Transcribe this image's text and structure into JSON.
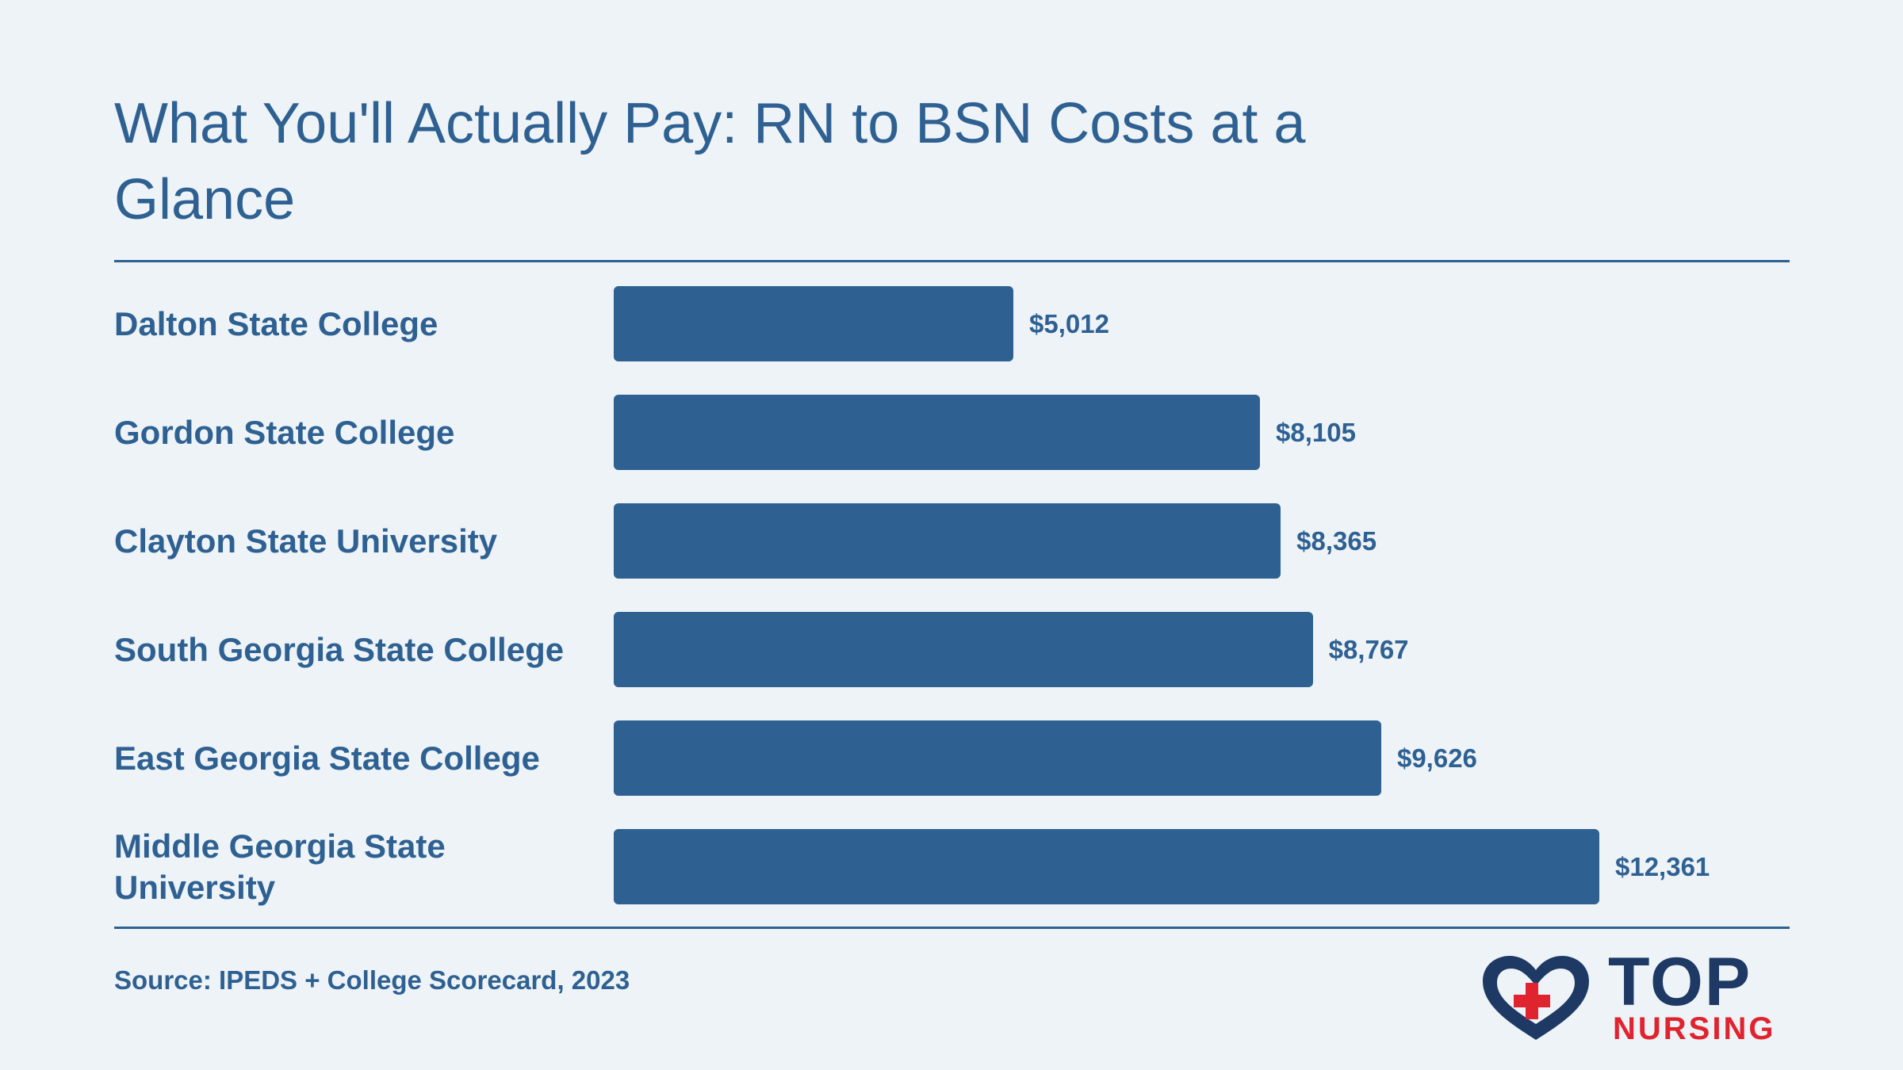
{
  "chart_data": {
    "type": "bar",
    "orientation": "horizontal",
    "title": "What You'll Actually Pay: RN to BSN Costs at a Glance",
    "categories": [
      "Dalton State College",
      "Gordon State College",
      "Clayton State University",
      "South Georgia State College",
      "East Georgia State College",
      "Middle Georgia State University"
    ],
    "values": [
      5012,
      8105,
      8365,
      8767,
      9626,
      12361
    ],
    "value_labels": [
      "$5,012",
      "$8,105",
      "$8,365",
      "$8,767",
      "$9,626",
      "$12,361"
    ],
    "xlim": [
      0,
      12361
    ],
    "grid": false,
    "legend": "none",
    "bar_color": "#2e6191",
    "text_color": "#2e6192"
  },
  "source": "Source: IPEDS + College Scorecard, 2023",
  "logo": {
    "top_text": "TOP",
    "bottom_text": "NURSING",
    "heart_color": "#1e3a64",
    "cross_color": "#e0242f"
  }
}
